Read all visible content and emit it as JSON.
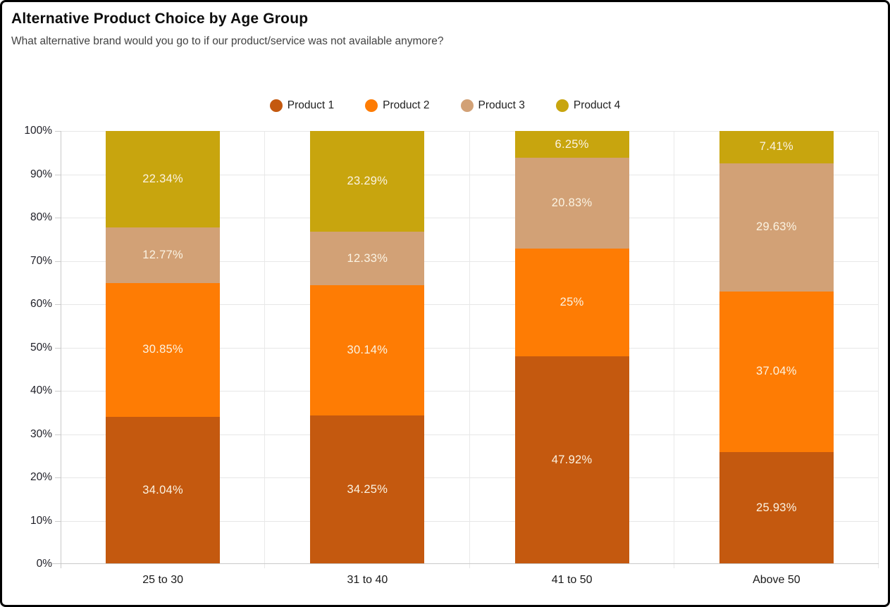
{
  "header": {
    "title": "Alternative Product Choice by Age Group",
    "subtitle": "What alternative brand would you go to if our product/service was not available anymore?"
  },
  "chart_data": {
    "type": "bar",
    "stacked": true,
    "stack_unit": "percent",
    "title": "Alternative Product Choice by Age Group",
    "subtitle": "What alternative brand would you go to if our product/service was not available anymore?",
    "categories": [
      "25 to 30",
      "31 to 40",
      "41 to 50",
      "Above 50"
    ],
    "series": [
      {
        "name": "Product 1",
        "color": "#c4590f",
        "values": [
          34.04,
          34.25,
          47.92,
          25.93
        ],
        "data_labels": [
          "34.04%",
          "34.25%",
          "47.92%",
          "25.93%"
        ]
      },
      {
        "name": "Product 2",
        "color": "#fe7c04",
        "values": [
          30.85,
          30.14,
          25,
          37.04
        ],
        "data_labels": [
          "30.85%",
          "30.14%",
          "25%",
          "37.04%"
        ]
      },
      {
        "name": "Product 3",
        "color": "#d2a176",
        "values": [
          12.77,
          12.33,
          20.83,
          29.63
        ],
        "data_labels": [
          "12.77%",
          "12.33%",
          "20.83%",
          "29.63%"
        ]
      },
      {
        "name": "Product 4",
        "color": "#c8a50e",
        "values": [
          22.34,
          23.29,
          6.25,
          7.41
        ],
        "data_labels": [
          "22.34%",
          "23.29%",
          "6.25%",
          "7.41%"
        ]
      }
    ],
    "xlabel": "",
    "ylabel": "",
    "ylim": [
      0,
      100
    ],
    "y_tick_step": 10,
    "y_tick_labels": [
      "0%",
      "10%",
      "20%",
      "30%",
      "40%",
      "50%",
      "60%",
      "70%",
      "80%",
      "90%",
      "100%"
    ],
    "grid": true,
    "legend_position": "top-center",
    "data_label_color": "#fbf3e2"
  },
  "style": {
    "grid_color": "#e7e7e7",
    "axis_color": "#c9c9c9",
    "frame_border_color": "#000000",
    "background": "#ffffff"
  }
}
